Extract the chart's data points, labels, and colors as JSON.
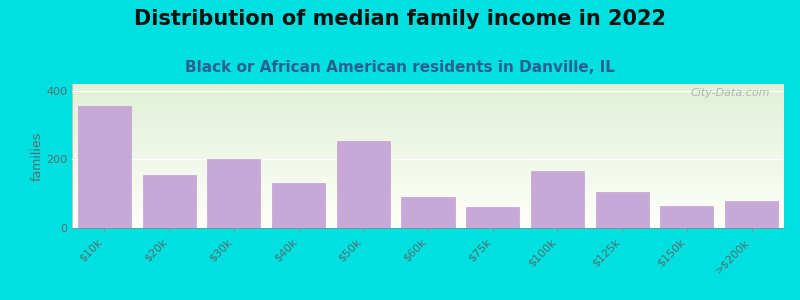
{
  "title": "Distribution of median family income in 2022",
  "subtitle": "Black or African American residents in Danville, IL",
  "categories": [
    "$10k",
    "$20k",
    "$30k",
    "$40k",
    "$50k",
    "$60k",
    "$75k",
    "$100k",
    "$125k",
    "$150k",
    ">$200k"
  ],
  "values": [
    355,
    155,
    200,
    130,
    255,
    90,
    60,
    165,
    105,
    65,
    80
  ],
  "bar_color": "#c8a8d8",
  "bar_edge_color": "#b898c8",
  "background_outer": "#00e0e0",
  "background_inner": "#e8f2e0",
  "ylabel": "families",
  "ylim": [
    0,
    420
  ],
  "yticks": [
    0,
    200,
    400
  ],
  "title_fontsize": 15,
  "subtitle_fontsize": 11,
  "title_color": "#111111",
  "subtitle_color": "#2a6090",
  "watermark": "City-Data.com",
  "watermark_color": "#a0adb0",
  "tick_label_color": "#507070",
  "axis_label_color": "#507070"
}
